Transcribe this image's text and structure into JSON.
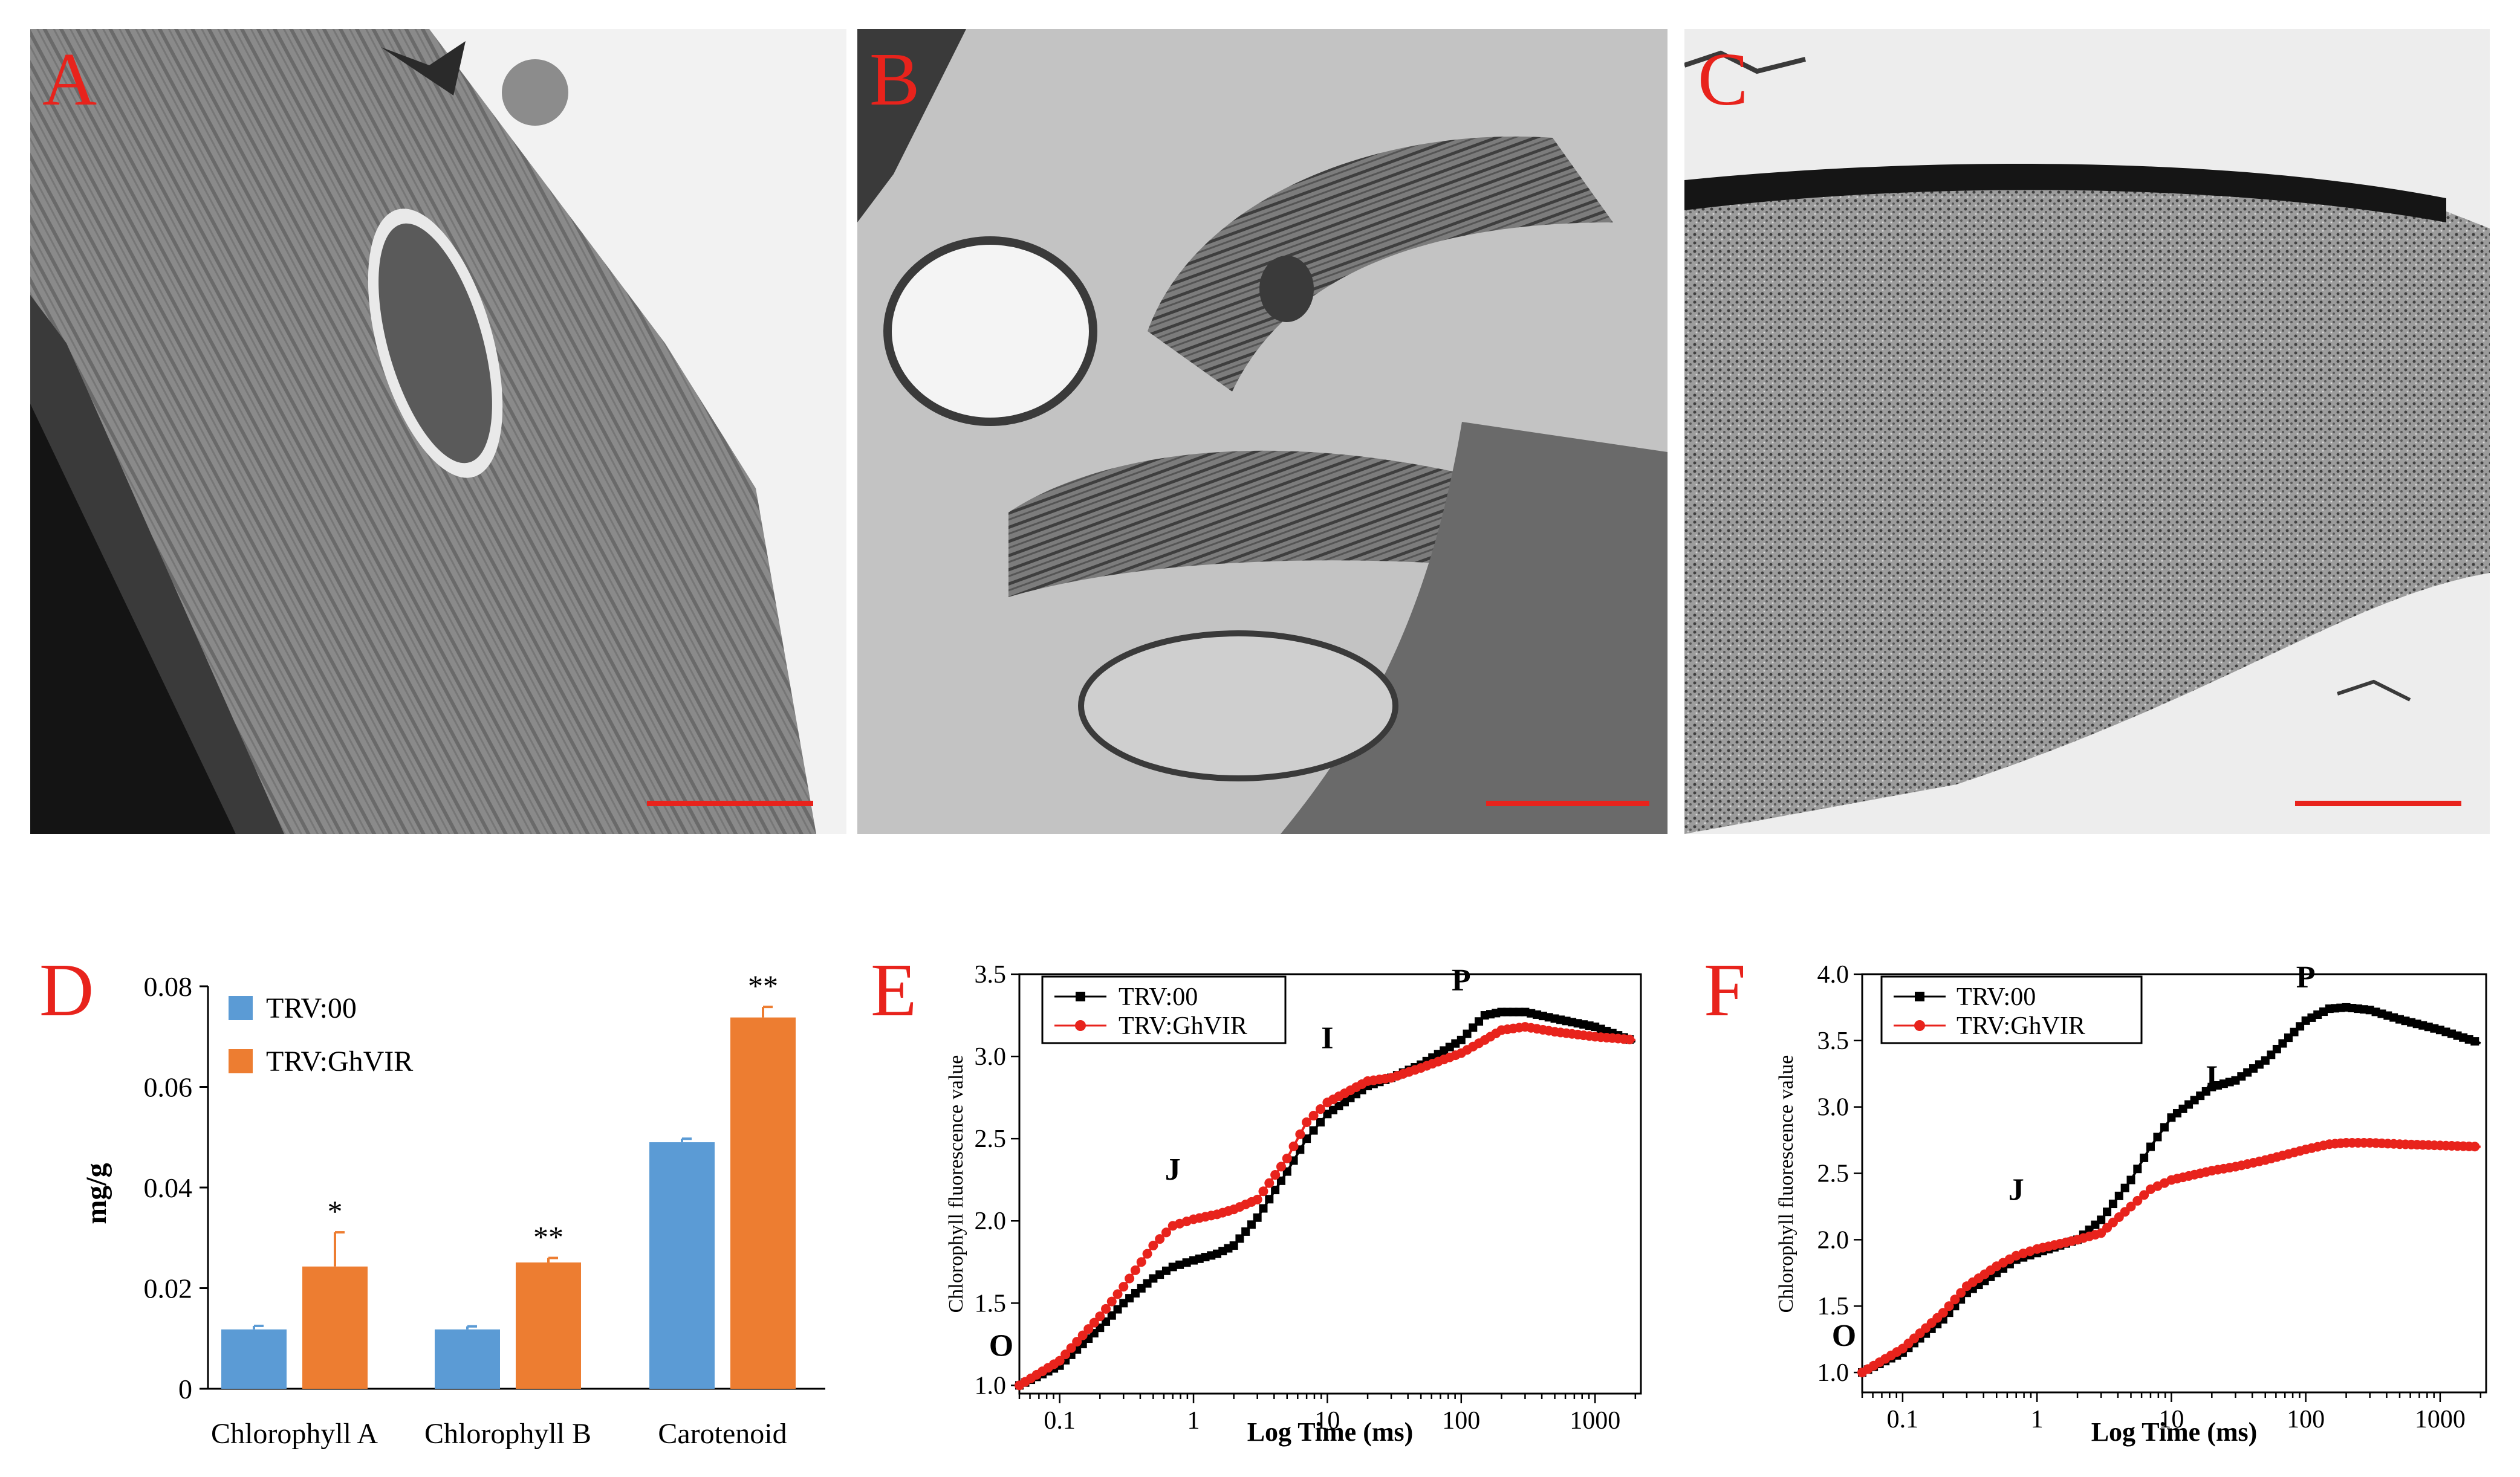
{
  "panels": {
    "A": {
      "label": "A"
    },
    "B": {
      "label": "B"
    },
    "C": {
      "label": "C"
    },
    "D": {
      "label": "D"
    },
    "E": {
      "label": "E"
    },
    "F": {
      "label": "F"
    }
  },
  "colors": {
    "panel_label": "#e8231c",
    "scale_bar": "#e8231c",
    "bar_control": "#5b9bd5",
    "bar_silenced": "#ed7d31",
    "line_control": "#000000",
    "line_silenced": "#e8231c"
  },
  "chart_data": [
    {
      "id": "D",
      "type": "bar",
      "categories": [
        "Chlorophyll A",
        "Chlorophyll B",
        "Carotenoid"
      ],
      "series": [
        {
          "name": "TRV:00",
          "values": [
            0.0118,
            0.0118,
            0.049
          ],
          "errors": [
            0.0007,
            0.0006,
            0.0007
          ]
        },
        {
          "name": "TRV:GhVIR",
          "values": [
            0.0243,
            0.0251,
            0.0738
          ],
          "errors": [
            0.0068,
            0.0009,
            0.0021
          ]
        }
      ],
      "significance": [
        "*",
        "**",
        "**"
      ],
      "ylabel": "mg/g",
      "xlabel": "",
      "ylim": [
        0,
        0.08
      ],
      "yticks": [
        "0",
        "0.02",
        "0.04",
        "0.06",
        "0.08"
      ],
      "legend": "top-left"
    },
    {
      "id": "E",
      "type": "line",
      "xscale": "log",
      "xlabel": "Log Time (ms)",
      "ylabel": "Chlorophyll fluorescence value",
      "xlim": [
        0.05,
        2200
      ],
      "ylim": [
        0.95,
        3.5
      ],
      "xticks": [
        "0.1",
        "1",
        "10",
        "100",
        "1000"
      ],
      "yticks": [
        "1.0",
        "1.5",
        "2.0",
        "2.5",
        "3.0",
        "3.5"
      ],
      "annotations": [
        {
          "text": "O",
          "x": 0.05,
          "y": 1.18
        },
        {
          "text": "J",
          "x": 0.7,
          "y": 2.25
        },
        {
          "text": "I",
          "x": 10,
          "y": 3.05
        },
        {
          "text": "P",
          "x": 100,
          "y": 3.4
        }
      ],
      "series": [
        {
          "name": "TRV:00",
          "x": [
            0.05,
            0.1,
            0.2,
            0.3,
            0.5,
            0.7,
            1,
            1.5,
            2,
            3,
            5,
            7,
            10,
            20,
            30,
            50,
            100,
            150,
            200,
            300,
            500,
            1000,
            2000
          ],
          "y": [
            1.0,
            1.12,
            1.35,
            1.5,
            1.65,
            1.72,
            1.76,
            1.8,
            1.85,
            2.02,
            2.3,
            2.5,
            2.65,
            2.82,
            2.87,
            2.95,
            3.1,
            3.25,
            3.27,
            3.27,
            3.23,
            3.18,
            3.09
          ]
        },
        {
          "name": "TRV:GhVIR",
          "x": [
            0.05,
            0.1,
            0.2,
            0.3,
            0.5,
            0.7,
            1,
            1.5,
            2,
            3,
            5,
            7,
            10,
            20,
            30,
            50,
            100,
            150,
            200,
            300,
            500,
            1000,
            2000
          ],
          "y": [
            1.0,
            1.15,
            1.42,
            1.6,
            1.85,
            1.97,
            2.01,
            2.04,
            2.07,
            2.13,
            2.38,
            2.6,
            2.72,
            2.85,
            2.87,
            2.93,
            3.02,
            3.1,
            3.16,
            3.18,
            3.15,
            3.12,
            3.1
          ]
        }
      ],
      "legend": "top-left"
    },
    {
      "id": "F",
      "type": "line",
      "xscale": "log",
      "xlabel": "Log Time (ms)",
      "ylabel": "Chlorophyll fluorescence value",
      "xlim": [
        0.05,
        2200
      ],
      "ylim": [
        0.85,
        4.0
      ],
      "xticks": [
        "0.1",
        "1",
        "10",
        "100",
        "1000"
      ],
      "yticks": [
        "1.0",
        "1.5",
        "2.0",
        "2.5",
        "3.0",
        "3.5",
        "4.0"
      ],
      "annotations": [
        {
          "text": "O",
          "x": 0.05,
          "y": 1.2
        },
        {
          "text": "J",
          "x": 0.7,
          "y": 2.3
        },
        {
          "text": "I",
          "x": 20,
          "y": 3.15
        },
        {
          "text": "P",
          "x": 100,
          "y": 3.9
        }
      ],
      "series": [
        {
          "name": "TRV:00",
          "x": [
            0.05,
            0.1,
            0.2,
            0.3,
            0.5,
            0.7,
            1,
            2,
            3,
            5,
            7,
            10,
            20,
            30,
            50,
            100,
            150,
            200,
            300,
            500,
            1000,
            2000
          ],
          "y": [
            1.0,
            1.15,
            1.4,
            1.6,
            1.75,
            1.85,
            1.9,
            2.0,
            2.15,
            2.45,
            2.7,
            2.92,
            3.15,
            3.2,
            3.35,
            3.65,
            3.74,
            3.75,
            3.73,
            3.66,
            3.58,
            3.48
          ]
        },
        {
          "name": "TRV:GhVIR",
          "x": [
            0.05,
            0.1,
            0.2,
            0.3,
            0.5,
            0.7,
            1,
            2,
            3,
            5,
            7,
            10,
            20,
            30,
            50,
            100,
            150,
            200,
            300,
            500,
            1000,
            2000
          ],
          "y": [
            1.0,
            1.18,
            1.45,
            1.65,
            1.8,
            1.88,
            1.93,
            2.0,
            2.05,
            2.25,
            2.38,
            2.45,
            2.52,
            2.55,
            2.6,
            2.68,
            2.72,
            2.73,
            2.73,
            2.72,
            2.71,
            2.7
          ]
        }
      ],
      "legend": "top-left"
    }
  ]
}
